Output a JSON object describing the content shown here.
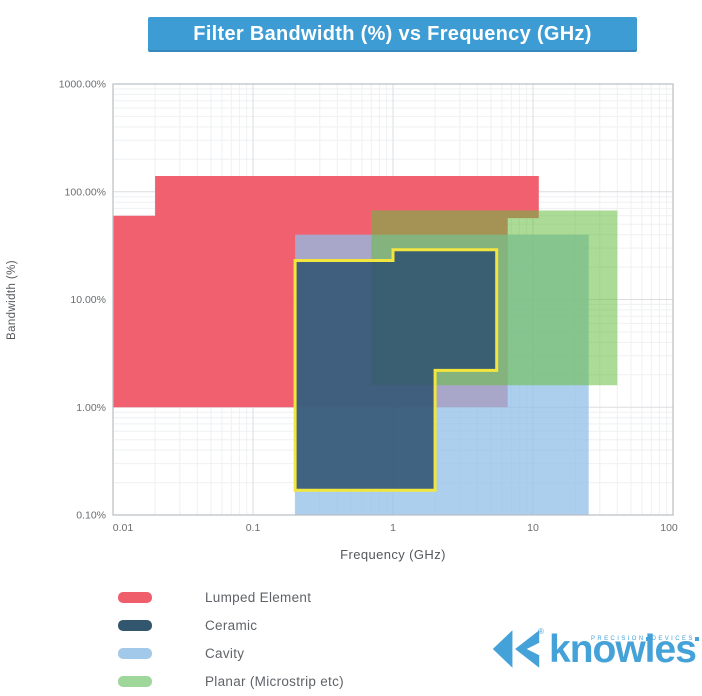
{
  "title_bar": {
    "text": "Filter Bandwidth (%) vs Frequency (GHz)",
    "background": "#3e9cd4"
  },
  "chart_data": {
    "type": "area",
    "title": "Filter Bandwidth (%) vs Frequency (GHz)",
    "xlabel": "Frequency (GHz)",
    "ylabel": "Bandwidth (%)",
    "x_axis": {
      "scale": "log",
      "min": 0.01,
      "max": 100,
      "ticks": [
        {
          "value": 0.01,
          "label": "0.01"
        },
        {
          "value": 0.1,
          "label": "0.1"
        },
        {
          "value": 1,
          "label": "1"
        },
        {
          "value": 10,
          "label": "10"
        },
        {
          "value": 100,
          "label": "100"
        }
      ]
    },
    "y_axis": {
      "scale": "log",
      "min": 0.1,
      "max": 1000,
      "ticks": [
        {
          "value": 0.1,
          "label": "0.10%"
        },
        {
          "value": 1,
          "label": "1.00%"
        },
        {
          "value": 10,
          "label": "10.00%"
        },
        {
          "value": 100,
          "label": "100.00%"
        },
        {
          "value": 1000,
          "label": "1000.00%"
        }
      ]
    },
    "grid": {
      "major": true,
      "minor": true
    },
    "series": [
      {
        "name": "Lumped Element",
        "shape": "polygon",
        "color": "#ef5b69",
        "opacity": 0.97,
        "points_ghz_pct": [
          [
            0.01,
            1
          ],
          [
            0.01,
            60
          ],
          [
            0.02,
            60
          ],
          [
            0.02,
            140
          ],
          [
            11,
            140
          ],
          [
            11,
            57
          ],
          [
            6.6,
            57
          ],
          [
            6.6,
            1
          ]
        ]
      },
      {
        "name": "Cavity",
        "shape": "polygon",
        "color": "#92bfe8",
        "opacity": 0.75,
        "points_ghz_pct": [
          [
            0.2,
            0.1
          ],
          [
            0.2,
            40
          ],
          [
            25,
            40
          ],
          [
            25,
            0.1
          ]
        ]
      },
      {
        "name": "Planar (Microstrip etc)",
        "shape": "polygon",
        "color": "#66be3f",
        "opacity": 0.55,
        "points_ghz_pct": [
          [
            0.7,
            1.6
          ],
          [
            0.7,
            67
          ],
          [
            40,
            67
          ],
          [
            40,
            1.6
          ]
        ]
      },
      {
        "name": "Ceramic",
        "shape": "polygon",
        "color": "#2e5270",
        "opacity": 0.86,
        "outline_color": "#f2e63e",
        "points_ghz_pct": [
          [
            0.2,
            0.17
          ],
          [
            0.2,
            23
          ],
          [
            1,
            23
          ],
          [
            1,
            29
          ],
          [
            5.5,
            29
          ],
          [
            5.5,
            2.2
          ],
          [
            2,
            2.2
          ],
          [
            2,
            0.17
          ]
        ]
      }
    ],
    "legend_position": "bottom-left"
  },
  "legend": {
    "items": [
      {
        "label": "Lumped Element",
        "color": "#ee5e6b"
      },
      {
        "label": "Ceramic",
        "color": "#33566f"
      },
      {
        "label": "Cavity",
        "color": "#a3c9ea"
      },
      {
        "label": "Planar (Microstrip etc)",
        "color": "#9fd69a"
      }
    ]
  },
  "logo": {
    "brand": "knowles",
    "tagline_words": [
      "PRECISION",
      "DEVICES"
    ],
    "registered_mark": "®",
    "color": "#45a2d8"
  }
}
